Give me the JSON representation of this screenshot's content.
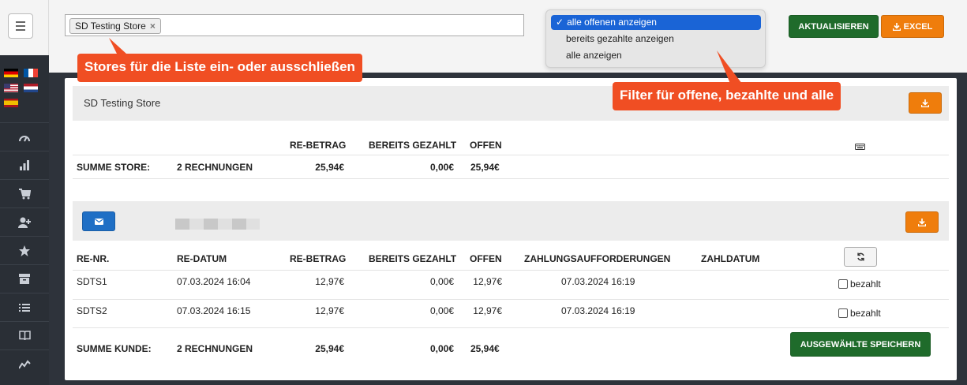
{
  "topbar": {
    "store_chip": "SD Testing Store",
    "store_chip_remove": "×",
    "filter_options": [
      {
        "label": "alle offenen anzeigen",
        "selected": true
      },
      {
        "label": "bereits gezahlte anzeigen",
        "selected": false
      },
      {
        "label": "alle anzeigen",
        "selected": false
      }
    ],
    "check_glyph": "✓",
    "refresh_button": "AKTUALISIEREN",
    "excel_button": "EXCEL"
  },
  "callouts": {
    "stores": "Stores für die Liste ein- oder ausschließen",
    "filter": "Filter für offene, bezahlte und alle"
  },
  "store_panel": {
    "title": "SD Testing Store",
    "headers": {
      "re_betrag": "RE-BETRAG",
      "bereits_gezahlt": "BEREITS GEZAHLT",
      "offen": "OFFEN"
    },
    "summary": {
      "label": "SUMME STORE:",
      "count": "2 RECHNUNGEN",
      "re_betrag": "25,94€",
      "gezahlt": "0,00€",
      "offen": "25,94€"
    }
  },
  "customer_panel": {
    "headers": {
      "re_nr": "RE-NR.",
      "re_datum": "RE-DATUM",
      "re_betrag": "RE-BETRAG",
      "bereits_gezahlt": "BEREITS GEZAHLT",
      "offen": "OFFEN",
      "zahlungsaufforderungen": "ZAHLUNGSAUFFORDERUNGEN",
      "zahldatum": "ZAHLDATUM"
    },
    "rows": [
      {
        "re_nr": "SDTS1",
        "re_datum": "07.03.2024 16:04",
        "re_betrag": "12,97€",
        "gezahlt": "0,00€",
        "offen": "12,97€",
        "aufforderung": "07.03.2024 16:19",
        "bezahlt_label": "bezahlt"
      },
      {
        "re_nr": "SDTS2",
        "re_datum": "07.03.2024 16:15",
        "re_betrag": "12,97€",
        "gezahlt": "0,00€",
        "offen": "12,97€",
        "aufforderung": "07.03.2024 16:19",
        "bezahlt_label": "bezahlt"
      }
    ],
    "summary": {
      "label": "SUMME KUNDE:",
      "count": "2 RECHNUNGEN",
      "re_betrag": "25,94€",
      "gezahlt": "0,00€",
      "offen": "25,94€"
    },
    "save_button": "AUSGEWÄHLTE SPEICHERN"
  },
  "colors": {
    "green": "#1f6b2b",
    "orange": "#ef7d0c",
    "blue": "#1f6fc5",
    "callout": "#f04e23"
  }
}
